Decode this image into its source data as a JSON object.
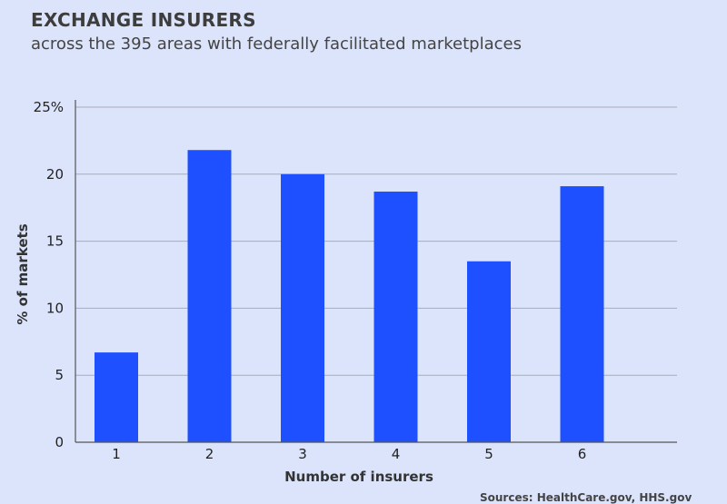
{
  "header": {
    "title": "EXCHANGE INSURERS",
    "subtitle": "across the 395 areas with federally facilitated marketplaces"
  },
  "footer": {
    "source": "Sources: HealthCare.gov, HHS.gov"
  },
  "colors": {
    "background": "#dbe4fb",
    "bar": "#1f50ff",
    "grid": "#a9acb6"
  },
  "chart_data": {
    "type": "bar",
    "categories": [
      "1",
      "2",
      "3",
      "4",
      "5",
      "6"
    ],
    "values": [
      6.7,
      21.8,
      20.0,
      18.7,
      13.5,
      19.1
    ],
    "xlabel": "Number of insurers",
    "ylabel": "% of markets",
    "ylim": [
      0,
      25
    ],
    "yticks": [
      0,
      5,
      10,
      15,
      20,
      25
    ],
    "ytick_labels": [
      "0",
      "5",
      "10",
      "15",
      "20",
      "25%"
    ],
    "grid": true
  }
}
